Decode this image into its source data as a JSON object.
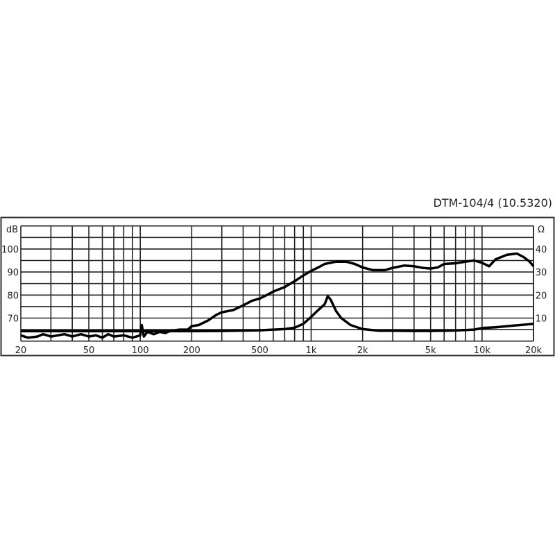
{
  "chart_data": {
    "type": "line",
    "title": "DTM-104/4 (10.5320)",
    "x_scale": "log",
    "xlim": [
      20,
      20000
    ],
    "x_ticks": [
      {
        "value": 20,
        "label": "20"
      },
      {
        "value": 50,
        "label": "50"
      },
      {
        "value": 100,
        "label": "100"
      },
      {
        "value": 200,
        "label": "200"
      },
      {
        "value": 500,
        "label": "500"
      },
      {
        "value": 1000,
        "label": "1k"
      },
      {
        "value": 2000,
        "label": "2k"
      },
      {
        "value": 5000,
        "label": "5k"
      },
      {
        "value": 10000,
        "label": "10k"
      },
      {
        "value": 20000,
        "label": "20k"
      }
    ],
    "y_left": {
      "label": "dB",
      "ylim": [
        60,
        110
      ],
      "ticks": [
        70,
        80,
        90,
        100
      ]
    },
    "y_right": {
      "label": "Ω",
      "ylim": [
        0,
        50
      ],
      "ticks": [
        10,
        20,
        30,
        40
      ]
    },
    "grid": true,
    "series": [
      {
        "axis": "left",
        "points": [
          [
            20,
            62.5
          ],
          [
            22,
            61.5
          ],
          [
            25,
            62
          ],
          [
            27,
            63
          ],
          [
            30,
            62
          ],
          [
            33,
            62.5
          ],
          [
            36,
            63
          ],
          [
            40,
            62
          ],
          [
            45,
            63
          ],
          [
            50,
            62
          ],
          [
            55,
            62.5
          ],
          [
            60,
            61.5
          ],
          [
            65,
            63
          ],
          [
            70,
            62
          ],
          [
            80,
            62.5
          ],
          [
            90,
            61.5
          ],
          [
            100,
            62.5
          ],
          [
            102,
            67
          ],
          [
            105,
            62
          ],
          [
            110,
            64
          ],
          [
            120,
            63
          ],
          [
            130,
            64
          ],
          [
            140,
            63.5
          ],
          [
            150,
            64.5
          ],
          [
            170,
            65
          ],
          [
            190,
            65
          ],
          [
            200,
            66.5
          ],
          [
            220,
            67
          ],
          [
            250,
            69
          ],
          [
            280,
            71.5
          ],
          [
            300,
            72.5
          ],
          [
            350,
            73.5
          ],
          [
            400,
            75.5
          ],
          [
            450,
            77.5
          ],
          [
            500,
            78.5
          ],
          [
            550,
            80
          ],
          [
            600,
            81.5
          ],
          [
            700,
            83.5
          ],
          [
            800,
            86
          ],
          [
            900,
            88.5
          ],
          [
            1000,
            90.5
          ],
          [
            1100,
            92
          ],
          [
            1200,
            93.5
          ],
          [
            1400,
            94.5
          ],
          [
            1600,
            94.5
          ],
          [
            1800,
            93.5
          ],
          [
            2000,
            92
          ],
          [
            2300,
            90.8
          ],
          [
            2700,
            90.8
          ],
          [
            3000,
            91.8
          ],
          [
            3500,
            92.8
          ],
          [
            4000,
            92.5
          ],
          [
            4500,
            91.8
          ],
          [
            5000,
            91.5
          ],
          [
            5500,
            92
          ],
          [
            6000,
            93.5
          ],
          [
            7000,
            93.8
          ],
          [
            8000,
            94.5
          ],
          [
            9000,
            95
          ],
          [
            10000,
            94
          ],
          [
            11000,
            92.5
          ],
          [
            12000,
            95.5
          ],
          [
            14000,
            97.5
          ],
          [
            16000,
            98
          ],
          [
            17500,
            96.5
          ],
          [
            19000,
            94.5
          ],
          [
            20000,
            92.5
          ]
        ]
      },
      {
        "axis": "right",
        "points": [
          [
            20,
            4.3
          ],
          [
            100,
            4.3
          ],
          [
            200,
            4.3
          ],
          [
            300,
            4.4
          ],
          [
            500,
            4.7
          ],
          [
            700,
            5.2
          ],
          [
            800,
            5.8
          ],
          [
            900,
            7.5
          ],
          [
            1000,
            10.5
          ],
          [
            1100,
            13.5
          ],
          [
            1200,
            16
          ],
          [
            1250,
            19.5
          ],
          [
            1300,
            18
          ],
          [
            1400,
            13
          ],
          [
            1500,
            10
          ],
          [
            1700,
            7
          ],
          [
            2000,
            5.2
          ],
          [
            2500,
            4.5
          ],
          [
            3000,
            4.5
          ],
          [
            4000,
            4.4
          ],
          [
            5000,
            4.4
          ],
          [
            7000,
            4.6
          ],
          [
            9000,
            5
          ],
          [
            10000,
            5.7
          ],
          [
            12000,
            6
          ],
          [
            15000,
            6.7
          ],
          [
            20000,
            7.5
          ]
        ]
      }
    ]
  }
}
